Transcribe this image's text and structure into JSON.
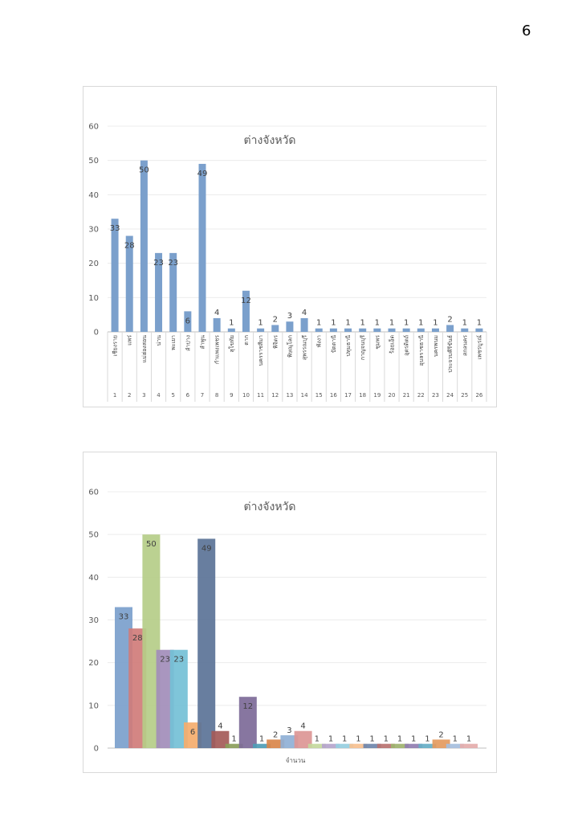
{
  "page_number": "6",
  "chart_data": [
    {
      "type": "bar",
      "title": "ต่างจังหวัด",
      "categories": [
        "เชียงราย",
        "แพร่",
        "แม่ฮ่องสอน",
        "น่าน",
        "พะเยา",
        "ลำปาง",
        "ลำพูน",
        "กำแพงเพชร",
        "สุโขทัย",
        "ตาก",
        "นครราชสีมา",
        "พิจิตร",
        "พิษณุโลก",
        "สุพรรณบุรี",
        "พังงา",
        "ปัตตานี",
        "ปทุมธานี",
        "กาญจนบุรี",
        "ชุมพร",
        "ร้อยเอ็ด",
        "อุตรดิตถ์",
        "อุบลราชธานี",
        "นครพนม",
        "ประจวบคีรีขันธ์",
        "สกลนคร",
        "เพชรบูรณ์"
      ],
      "index_labels": [
        "1",
        "2",
        "3",
        "4",
        "5",
        "6",
        "7",
        "8",
        "9",
        "10",
        "11",
        "12",
        "13",
        "14",
        "15",
        "16",
        "17",
        "18",
        "19",
        "20",
        "21",
        "22",
        "23",
        "24",
        "25",
        "26"
      ],
      "values": [
        33,
        28,
        50,
        23,
        23,
        6,
        49,
        4,
        1,
        12,
        1,
        2,
        3,
        4,
        1,
        1,
        1,
        1,
        1,
        1,
        1,
        1,
        1,
        2,
        1,
        1
      ],
      "ylim": [
        0,
        60
      ],
      "yticks": [
        0,
        10,
        20,
        30,
        40,
        50,
        60
      ],
      "bar_color": "#7ba0cc",
      "grid": true,
      "legend": "none"
    },
    {
      "type": "bar",
      "title": "ต่างจังหวัด",
      "xlabel": "จำนวน",
      "values": [
        33,
        28,
        50,
        23,
        23,
        6,
        49,
        4,
        1,
        12,
        1,
        2,
        3,
        4,
        1,
        1,
        1,
        1,
        1,
        1,
        1,
        1,
        1,
        2,
        1,
        1
      ],
      "ylim": [
        0,
        60
      ],
      "yticks": [
        0,
        10,
        20,
        30,
        40,
        50,
        60
      ],
      "colors": [
        "#7ba0cc",
        "#d07c7a",
        "#b5cd88",
        "#a28dba",
        "#74c0d6",
        "#f5ac6c",
        "#5b7397",
        "#a45a58",
        "#8a9d5a",
        "#7d6a98",
        "#4d9cb5",
        "#d9864a",
        "#8fb0d6",
        "#dc9695",
        "#c4d89d",
        "#b5a5cc",
        "#96cedf",
        "#f7c08f",
        "#6e86ab",
        "#b87270",
        "#9eb26e",
        "#907db0",
        "#65aec6",
        "#e49a5e",
        "#a5bedd",
        "#e4acab"
      ],
      "grid": true,
      "legend": "none"
    }
  ]
}
